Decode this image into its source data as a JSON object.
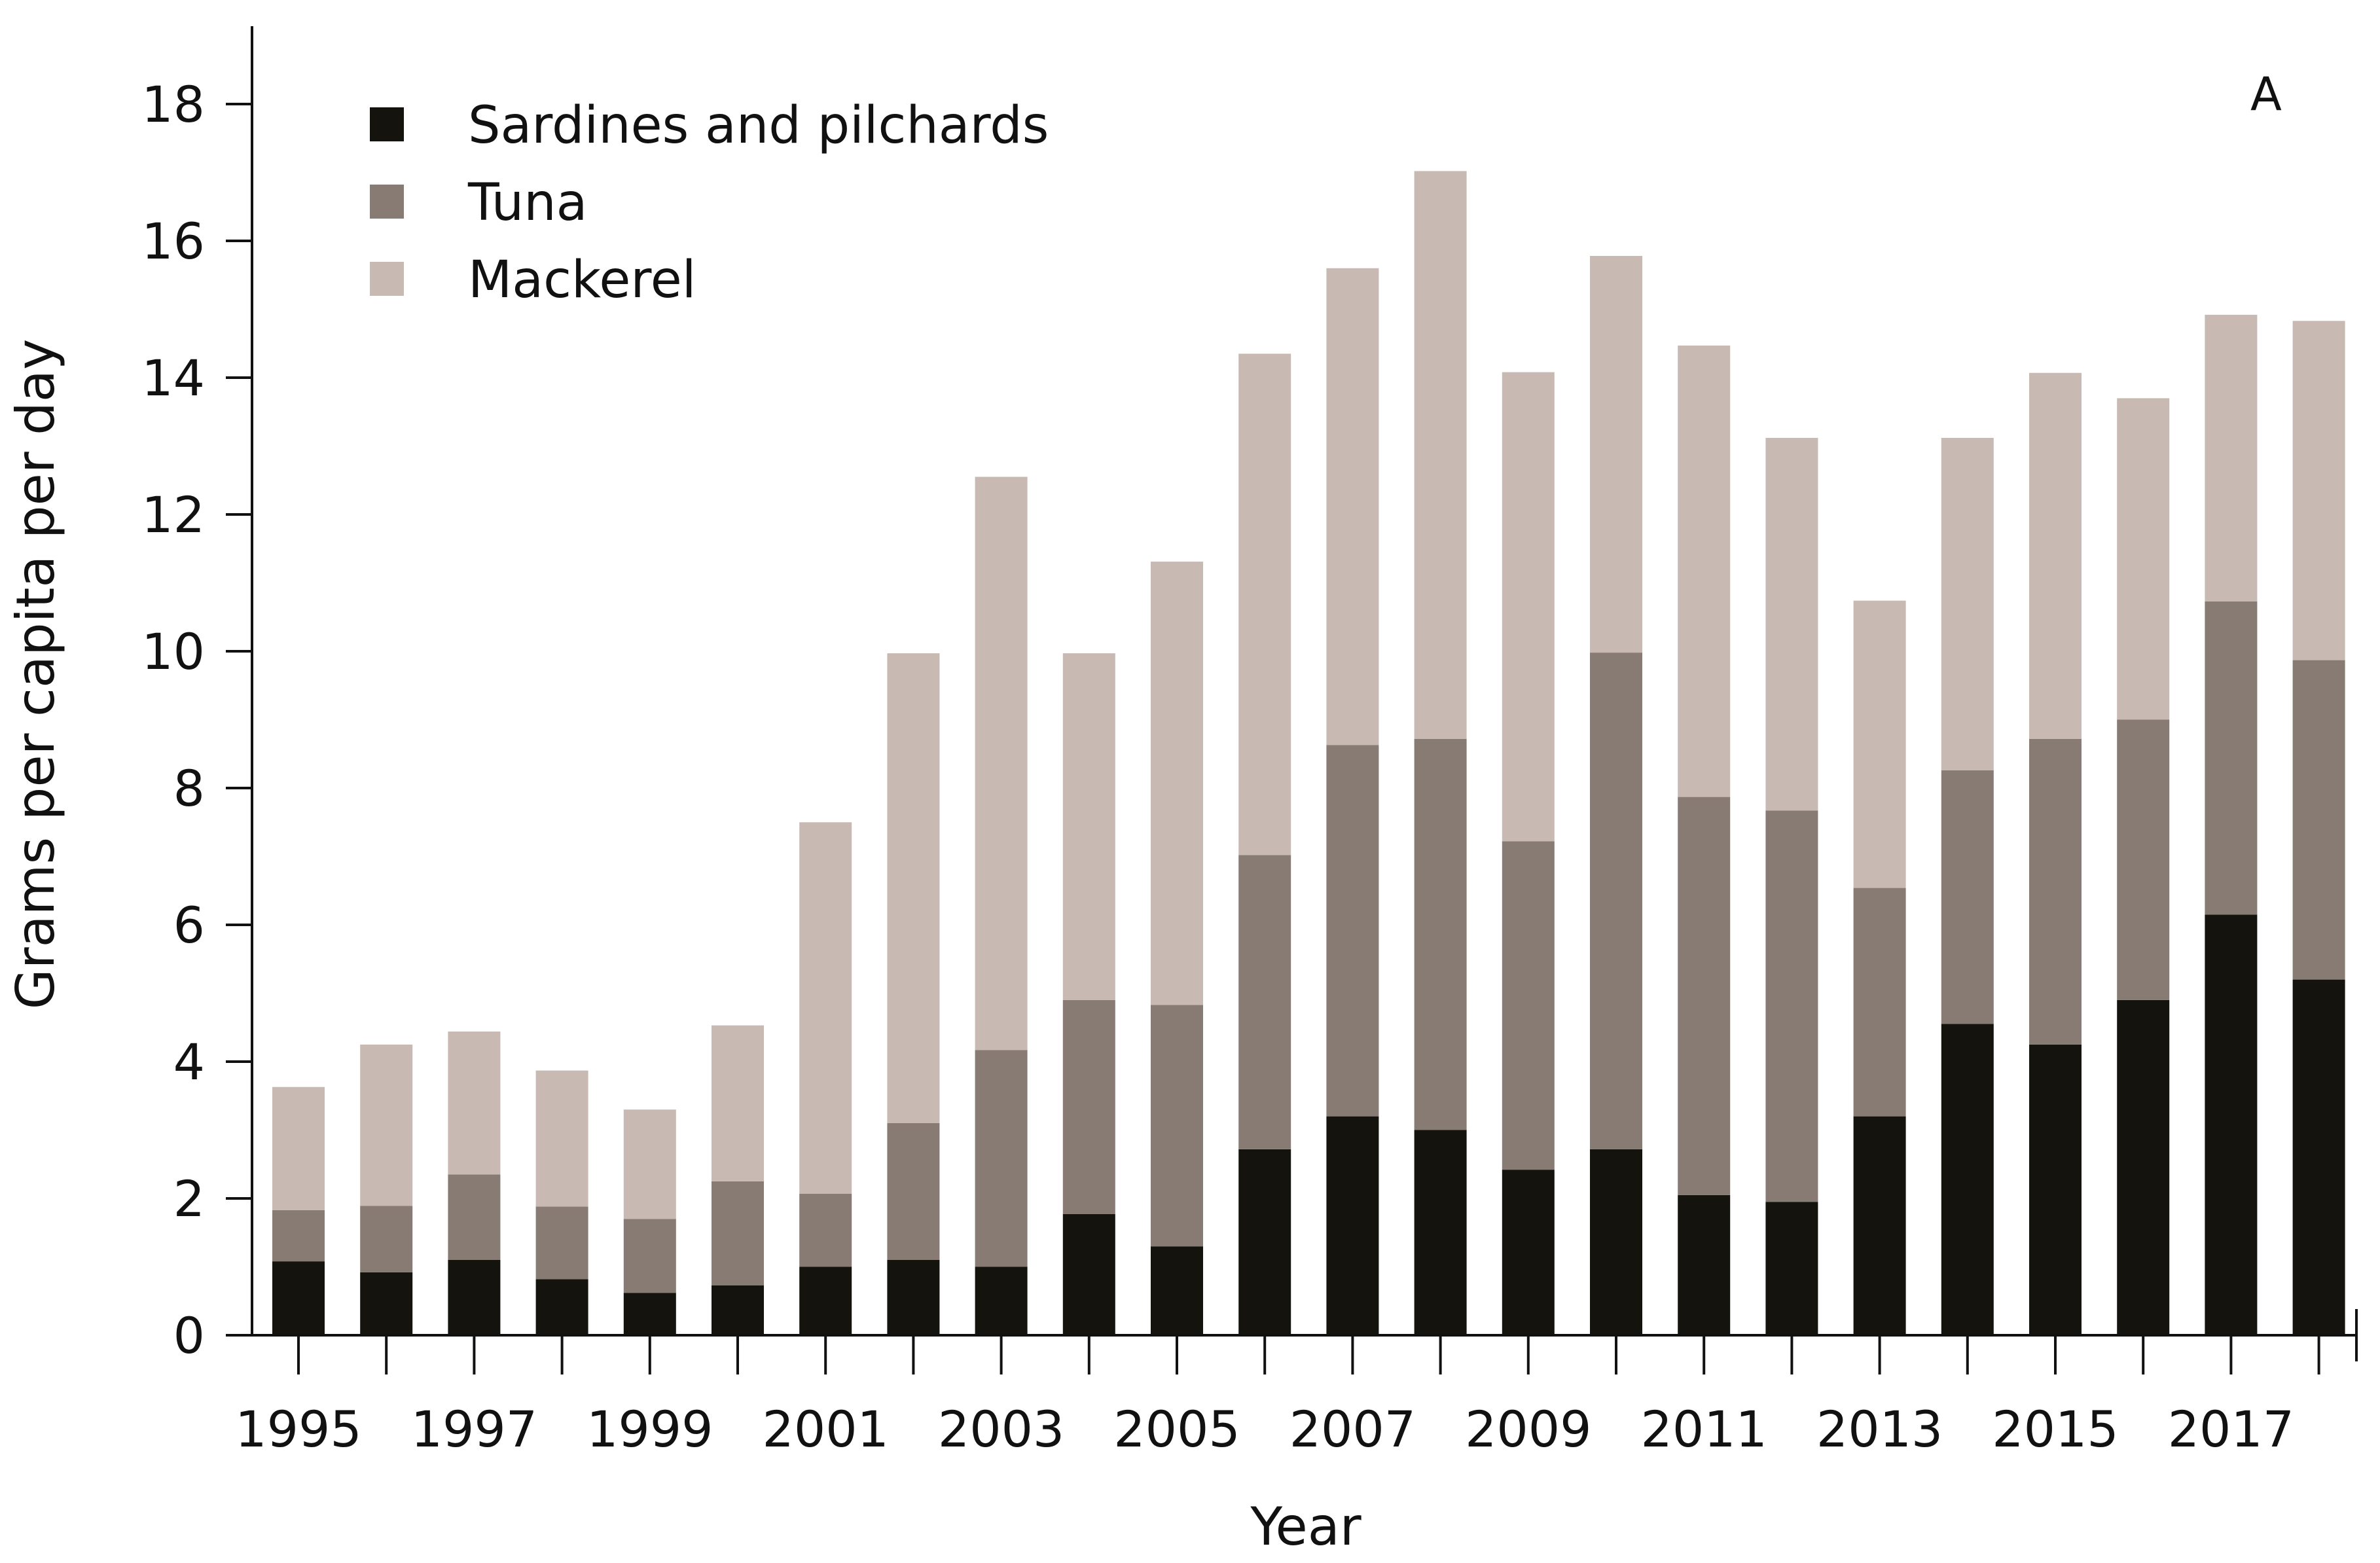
{
  "chart_data": {
    "type": "bar",
    "stacked": true,
    "title": "",
    "panel_label": "A",
    "xlabel": "Year",
    "ylabel": "Grams per capita per day",
    "ylim": [
      0,
      19
    ],
    "yticks": [
      0,
      2,
      4,
      6,
      8,
      10,
      12,
      14,
      16,
      18
    ],
    "ytick_labels": [
      "0",
      "2",
      "4",
      "6",
      "8",
      "10",
      "12",
      "14",
      "16",
      "18"
    ],
    "categories": [
      "1995",
      "1996",
      "1997",
      "1998",
      "1999",
      "2000",
      "2001",
      "2002",
      "2003",
      "2004",
      "2005",
      "2006",
      "2007",
      "2008",
      "2009",
      "2010",
      "2011",
      "2012",
      "2013",
      "2014",
      "2015",
      "2016",
      "2017",
      "2018"
    ],
    "xtick_labels": [
      "1995",
      "1997",
      "1999",
      "2001",
      "2003",
      "2005",
      "2007",
      "2009",
      "2011",
      "2013",
      "2015",
      "2017"
    ],
    "legend_position": "top-left",
    "grid": false,
    "series": [
      {
        "name": "Sardines and pilchards",
        "color": "#14130e",
        "values": [
          1.08,
          0.92,
          1.1,
          0.82,
          0.62,
          0.73,
          1.0,
          1.1,
          1.0,
          1.77,
          1.3,
          2.72,
          3.2,
          3.0,
          2.42,
          2.72,
          2.05,
          1.95,
          3.2,
          4.55,
          4.25,
          4.9,
          6.15,
          5.2
        ]
      },
      {
        "name": "Tuna",
        "color": "#877b73",
        "values": [
          0.75,
          0.97,
          1.25,
          1.06,
          1.08,
          1.52,
          1.07,
          2.0,
          3.17,
          3.13,
          3.53,
          4.3,
          5.43,
          5.72,
          4.8,
          7.26,
          5.82,
          5.72,
          3.34,
          3.71,
          4.47,
          4.1,
          4.58,
          4.67
        ]
      },
      {
        "name": "Mackerel",
        "color": "#c8bab2",
        "values": [
          1.8,
          2.36,
          2.09,
          1.99,
          1.6,
          2.28,
          5.43,
          6.87,
          8.38,
          5.07,
          6.48,
          7.33,
          6.97,
          8.3,
          6.86,
          5.8,
          6.6,
          5.45,
          4.2,
          4.86,
          5.35,
          4.7,
          4.19,
          4.96
        ]
      }
    ]
  }
}
